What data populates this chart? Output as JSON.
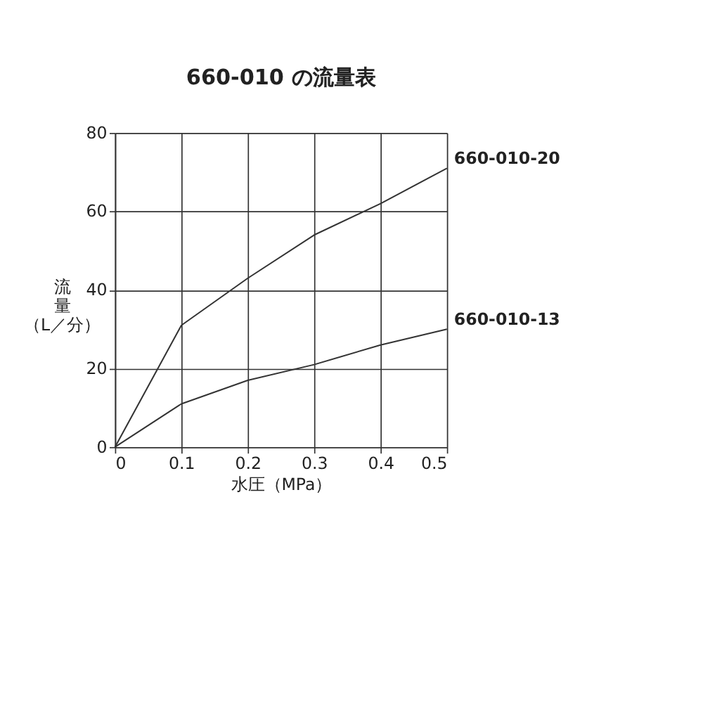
{
  "chart_data": {
    "type": "line",
    "title": "660-010 の流量表",
    "xlabel": "水圧（MPa）",
    "ylabel": "流量（L／分）",
    "x": [
      0,
      0.1,
      0.2,
      0.3,
      0.4,
      0.5
    ],
    "series": [
      {
        "name": "660-010-20",
        "color": "#333333",
        "values": [
          0,
          31,
          43,
          54,
          62,
          71
        ]
      },
      {
        "name": "660-010-13",
        "color": "#333333",
        "values": [
          0,
          11,
          17,
          21,
          26,
          30
        ]
      }
    ],
    "xlim": [
      0,
      0.5
    ],
    "xticks": [
      {
        "value": 0,
        "label": "0"
      },
      0.1,
      0.2,
      0.3,
      0.4,
      0.5
    ],
    "ylim": [
      0,
      80
    ],
    "yticks": [
      0,
      20,
      40,
      60,
      80
    ],
    "grid": true,
    "marker": "none",
    "line_style": "solid"
  }
}
